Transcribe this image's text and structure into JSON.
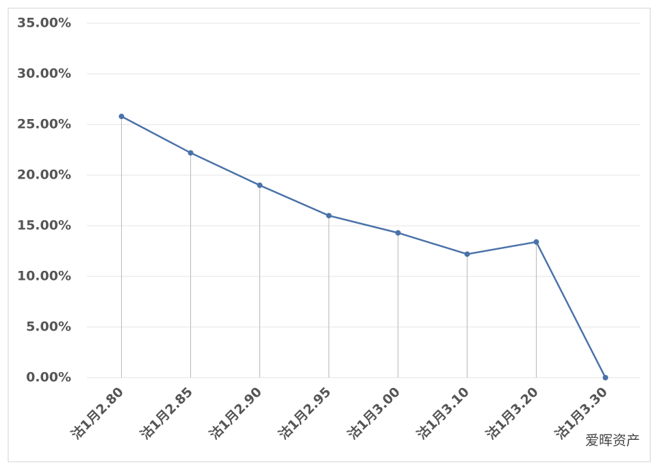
{
  "chart_data": {
    "type": "line",
    "categories": [
      "沽1月2.80",
      "沽1月2.85",
      "沽1月2.90",
      "沽1月2.95",
      "沽1月3.00",
      "沽1月3.10",
      "沽1月3.20",
      "沽1月3.30"
    ],
    "values": [
      25.8,
      22.2,
      19.0,
      16.0,
      14.3,
      12.2,
      13.4,
      0
    ],
    "color": "#4a72a8",
    "ylim": [
      0,
      35
    ],
    "yticks": [
      {
        "value": 0,
        "label": "0.00%"
      },
      {
        "value": 5,
        "label": "5.00%"
      },
      {
        "value": 10,
        "label": "10.00%"
      },
      {
        "value": 15,
        "label": "15.00%"
      },
      {
        "value": 20,
        "label": "20.00%"
      },
      {
        "value": 25,
        "label": "25.00%"
      },
      {
        "value": 30,
        "label": "30.00%"
      },
      {
        "value": 35,
        "label": "35.00%"
      }
    ],
    "grid": true,
    "drop_lines": true,
    "watermark": "爱晖资产"
  }
}
